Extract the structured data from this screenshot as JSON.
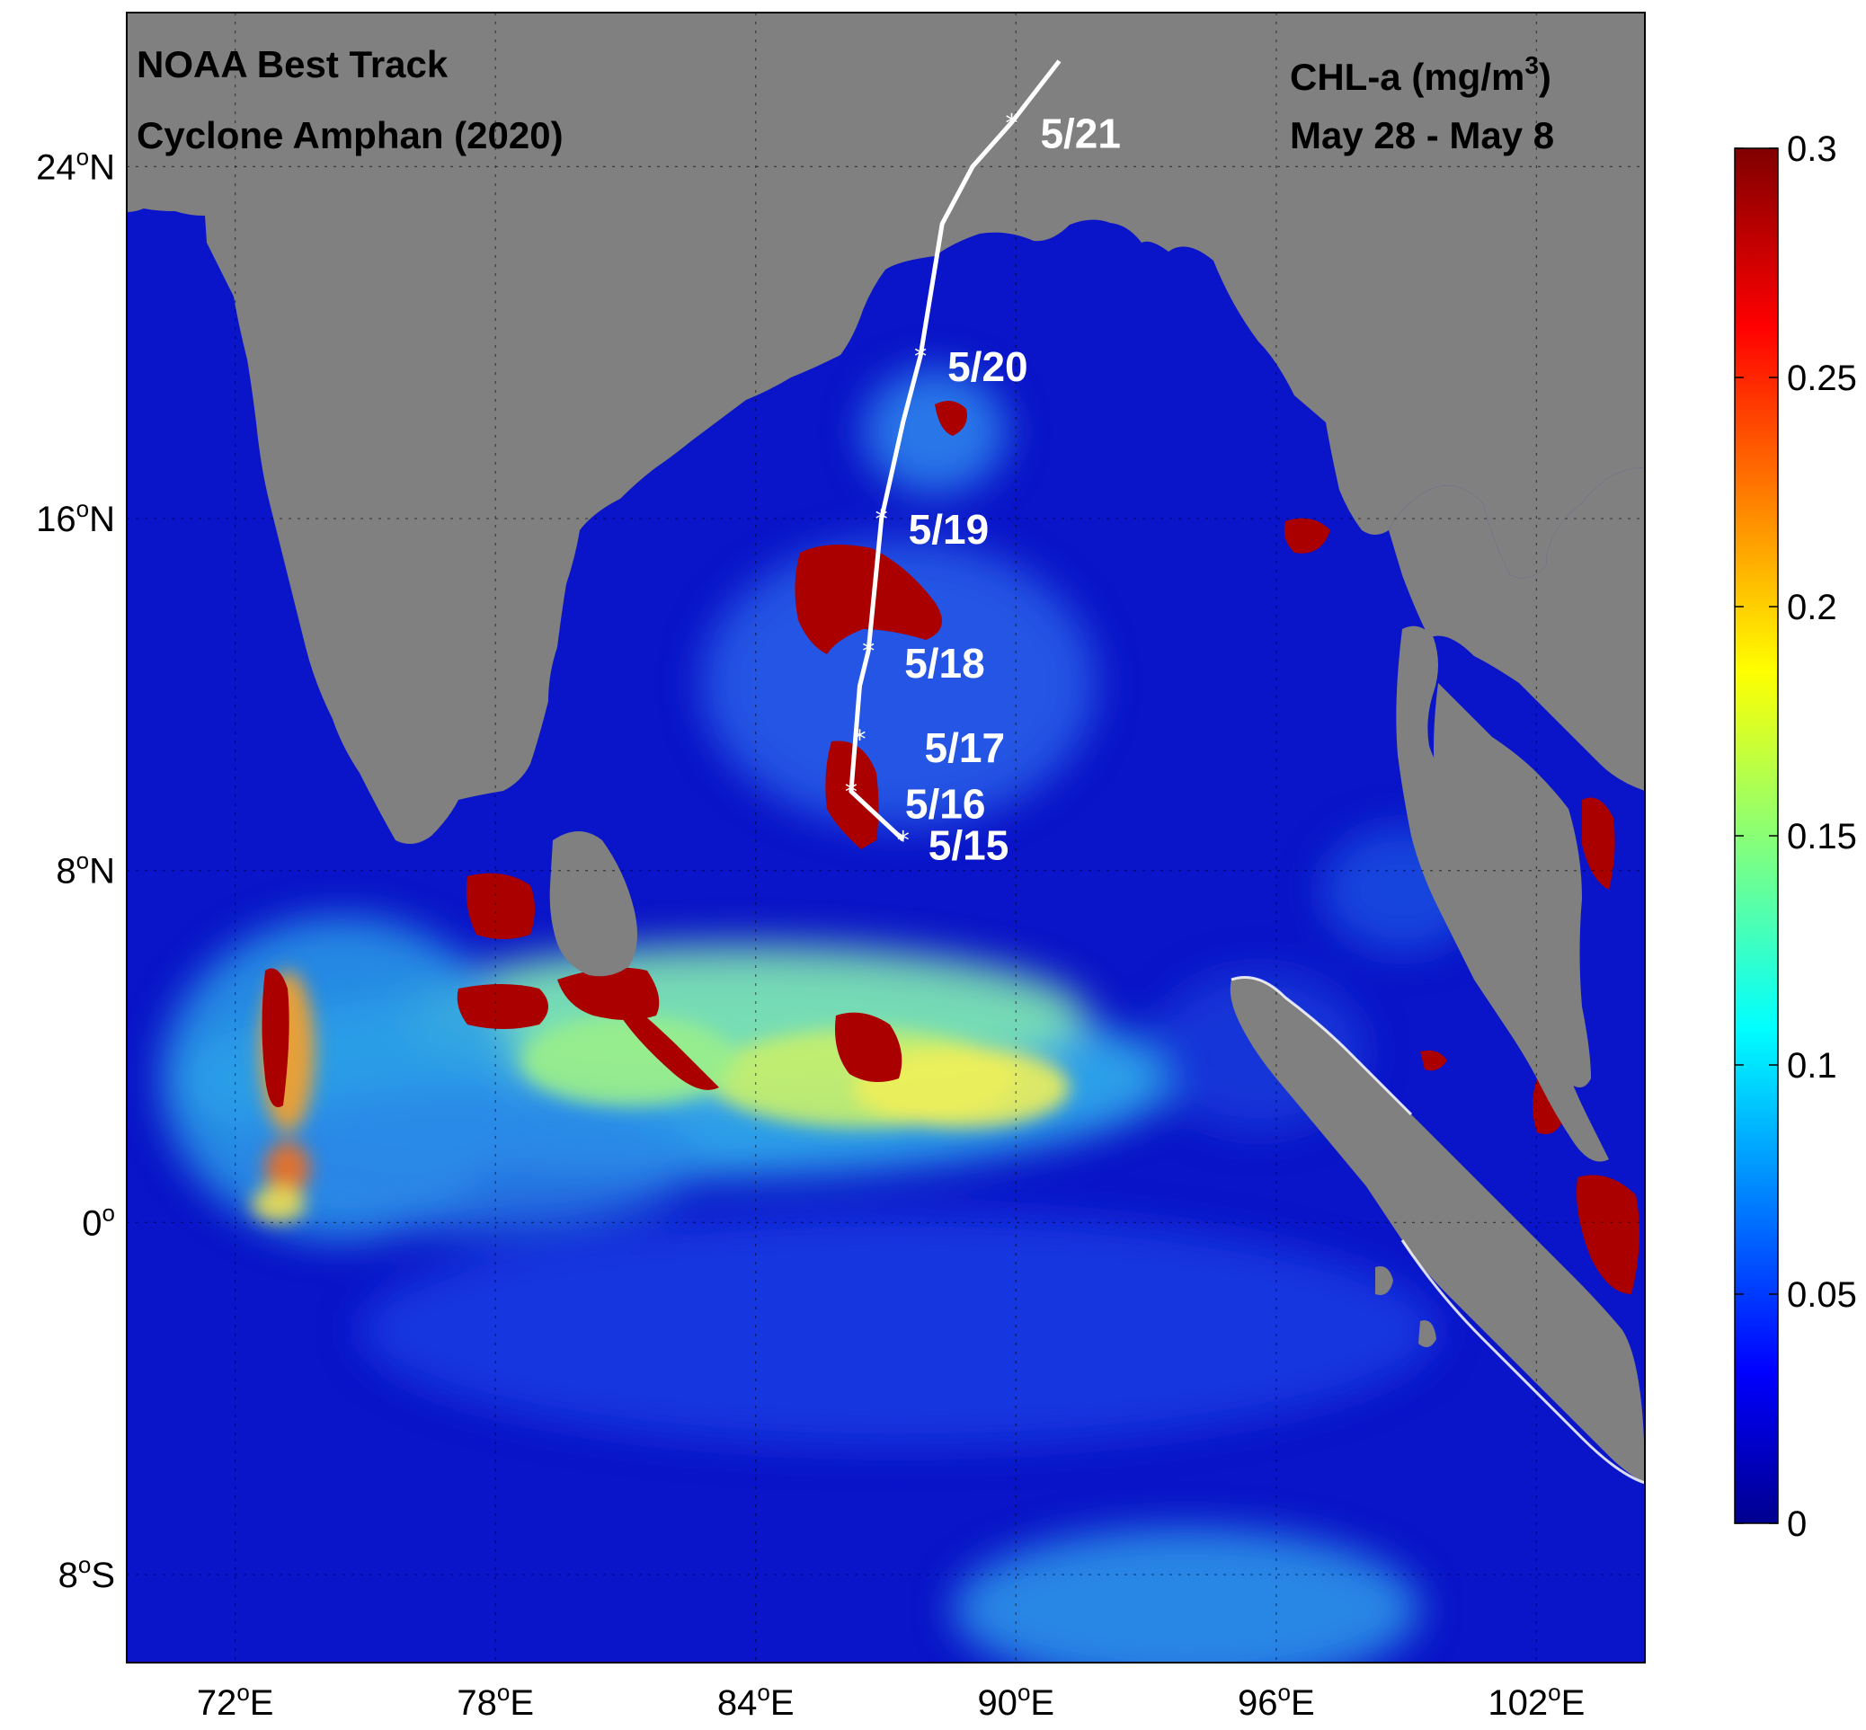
{
  "map": {
    "title_lines": [
      "NOAA Best Track",
      "Cyclone Amphan (2020)"
    ],
    "variable_label": "CHL-a (mg/m",
    "variable_unit_sup": "3",
    "variable_label_close": ")",
    "period": "May 28 - May 8",
    "lon_range": [
      69.5,
      104.5
    ],
    "lat_range": [
      -10,
      27.5
    ],
    "lat_ticks": [
      {
        "value": 24,
        "num": "24",
        "dir": "N"
      },
      {
        "value": 16,
        "num": "16",
        "dir": "N"
      },
      {
        "value": 8,
        "num": "8",
        "dir": "N"
      },
      {
        "value": 0,
        "num": "0",
        "dir": ""
      },
      {
        "value": -8,
        "num": "8",
        "dir": "S"
      }
    ],
    "lon_ticks": [
      {
        "value": 72,
        "num": "72",
        "dir": "E"
      },
      {
        "value": 78,
        "num": "78",
        "dir": "E"
      },
      {
        "value": 84,
        "num": "84",
        "dir": "E"
      },
      {
        "value": 90,
        "num": "90",
        "dir": "E"
      },
      {
        "value": 96,
        "num": "96",
        "dir": "E"
      },
      {
        "value": 102,
        "num": "102",
        "dir": "E"
      }
    ],
    "degree_symbol": "o",
    "land_color": "#808080",
    "ocean_base_color": "#0a14c8",
    "track_color": "#ffffff",
    "track": [
      {
        "lon": 87.4,
        "lat": 8.7,
        "label": "5/15"
      },
      {
        "lon": 86.2,
        "lat": 9.8,
        "label": "5/16"
      },
      {
        "lon": 86.4,
        "lat": 11.0,
        "label": "5/17"
      },
      {
        "lon": 86.6,
        "lat": 13.0,
        "label": "5/18"
      },
      {
        "lon": 86.9,
        "lat": 16.0,
        "label": "5/19"
      },
      {
        "lon": 87.8,
        "lat": 19.7,
        "label": "5/20"
      },
      {
        "lon": 89.9,
        "lat": 25.0,
        "label": "5/21"
      }
    ],
    "track_path": [
      [
        87.4,
        8.7
      ],
      [
        86.2,
        9.8
      ],
      [
        86.3,
        11.0
      ],
      [
        86.4,
        12.2
      ],
      [
        86.6,
        13.0
      ],
      [
        86.9,
        16.0
      ],
      [
        87.4,
        18.2
      ],
      [
        87.8,
        19.7
      ],
      [
        88.3,
        22.7
      ],
      [
        89.0,
        24.0
      ],
      [
        89.9,
        25.0
      ],
      [
        91.0,
        26.4
      ]
    ]
  },
  "colorbar": {
    "ticks": [
      "0.3",
      "0.25",
      "0.2",
      "0.15",
      "0.1",
      "0.05",
      "0"
    ],
    "min": 0,
    "max": 0.3,
    "colormap": "jet"
  }
}
